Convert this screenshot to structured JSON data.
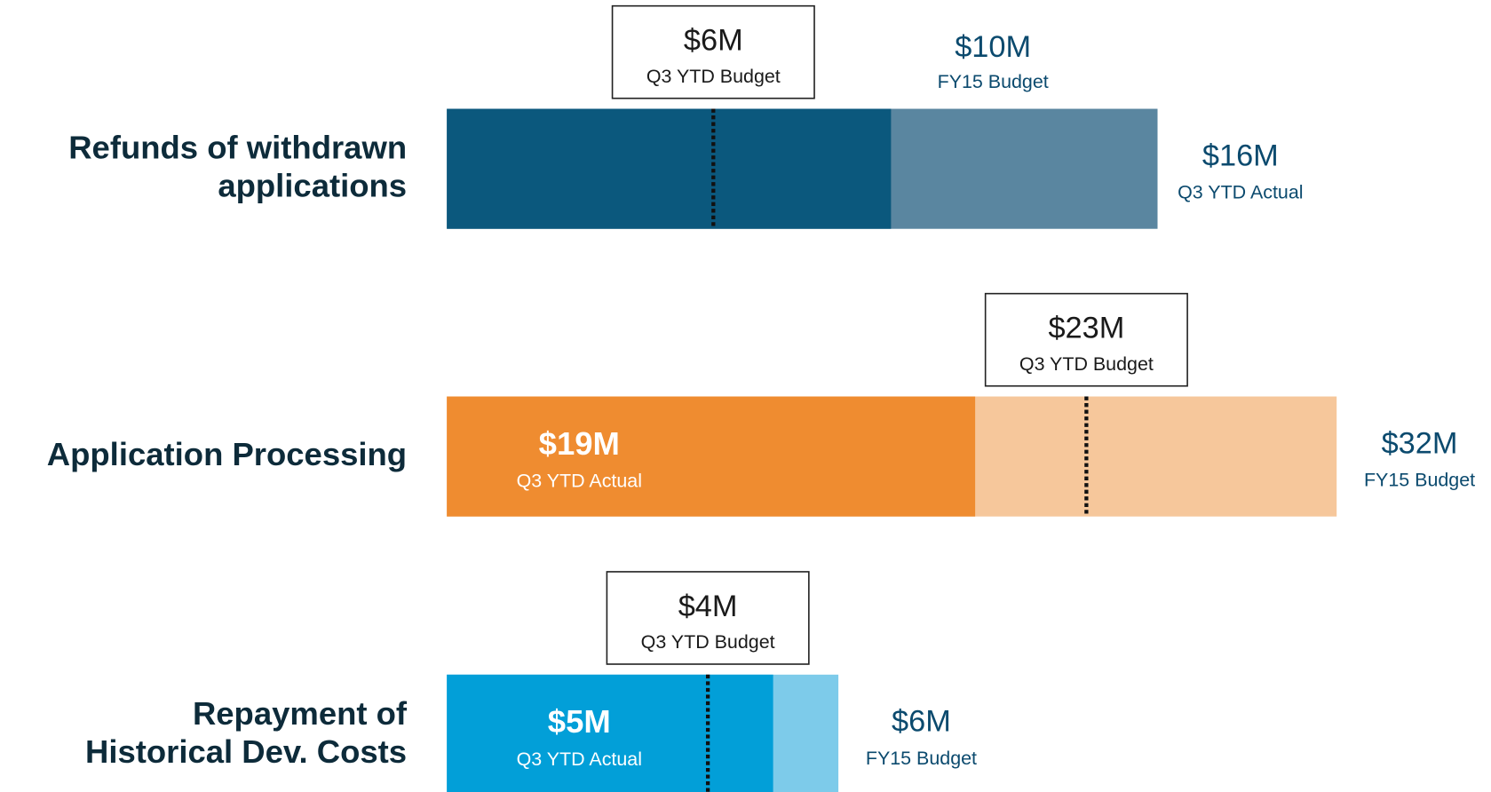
{
  "chart_data": {
    "type": "bullet",
    "categories": [
      [
        "Refunds of withdrawn",
        "applications"
      ],
      [
        "Application Processing"
      ],
      [
        "Repayment of",
        "Historical Dev. Costs"
      ]
    ],
    "colors": [
      [
        "#0b587d",
        "#5a86a0"
      ],
      [
        "#ef8c30",
        "#f6c79b"
      ],
      [
        "#029fd8",
        "#7dcbea"
      ]
    ],
    "series": [
      {
        "name": "Q3 YTD Actual",
        "values": [
          16,
          19,
          5
        ],
        "value_labels": [
          "$16M",
          "$19M",
          "$5M"
        ]
      },
      {
        "name": "FY15 Budget",
        "values": [
          10,
          32,
          6
        ],
        "value_labels": [
          "$10M",
          "$32M",
          "$6M"
        ]
      },
      {
        "name": "Q3 YTD Budget",
        "values": [
          6,
          23,
          4
        ],
        "value_labels": [
          "$6M",
          "$23M",
          "$4M"
        ]
      }
    ]
  }
}
